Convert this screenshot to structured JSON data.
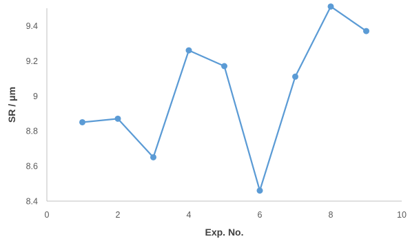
{
  "chart_data": {
    "type": "line",
    "title": "",
    "xlabel": "Exp. No.",
    "ylabel": "SR / μm",
    "xlim": [
      0,
      10
    ],
    "ylim": [
      8.4,
      9.5
    ],
    "x_ticks": [
      0,
      2,
      4,
      6,
      8,
      10
    ],
    "x_tick_labels": [
      "0",
      "2",
      "4",
      "6",
      "8",
      "10"
    ],
    "y_ticks": [
      8.4,
      8.6,
      8.8,
      9.0,
      9.2,
      9.4
    ],
    "y_tick_labels": [
      "8.4",
      "8.6",
      "8.8",
      "9",
      "9.2",
      "9.4"
    ],
    "grid": false,
    "legend": "none",
    "series": [
      {
        "color": "#5B9BD5",
        "x": [
          1,
          2,
          3,
          4,
          5,
          6,
          7,
          8,
          9
        ],
        "y": [
          8.85,
          8.87,
          8.65,
          9.26,
          9.17,
          8.46,
          9.11,
          9.51,
          9.37
        ]
      }
    ]
  }
}
